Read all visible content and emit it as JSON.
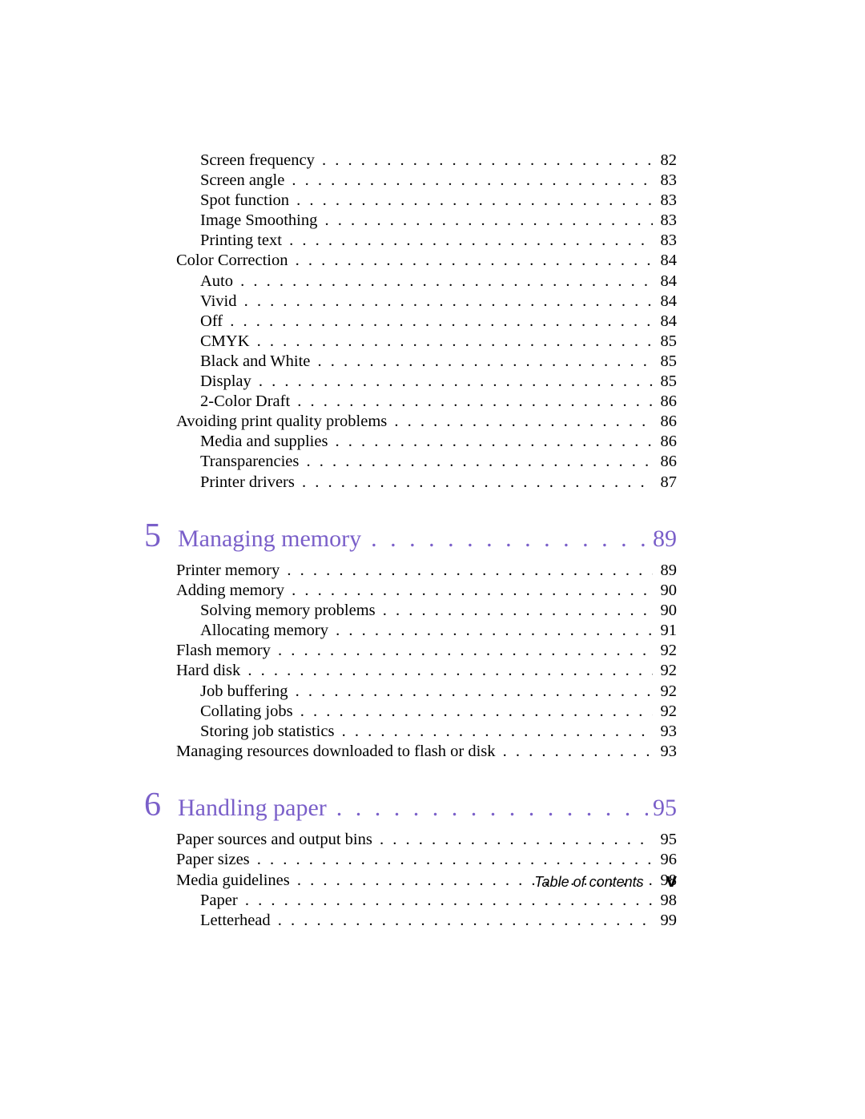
{
  "colors": {
    "heading": "#7a5fc9",
    "text": "#000000",
    "background": "#ffffff"
  },
  "typography": {
    "body_family": "Palatino Linotype, Book Antiqua, Palatino, Georgia, serif",
    "body_size_pt": 15,
    "heading_num_size_pt": 32,
    "heading_title_size_pt": 22,
    "footer_label_family": "Arial, Helvetica, sans-serif",
    "footer_label_size_pt": 13,
    "footer_page_size_pt": 18,
    "footer_page_weight": "700"
  },
  "top_entries": [
    {
      "level": 2,
      "title": "Screen frequency",
      "page": "82"
    },
    {
      "level": 2,
      "title": "Screen angle",
      "page": "83"
    },
    {
      "level": 2,
      "title": "Spot function",
      "page": "83"
    },
    {
      "level": 2,
      "title": "Image Smoothing",
      "page": "83"
    },
    {
      "level": 2,
      "title": "Printing text",
      "page": "83"
    },
    {
      "level": 1,
      "title": "Color Correction",
      "page": "84"
    },
    {
      "level": 2,
      "title": "Auto",
      "page": "84"
    },
    {
      "level": 2,
      "title": "Vivid",
      "page": "84"
    },
    {
      "level": 2,
      "title": "Off",
      "page": "84"
    },
    {
      "level": 2,
      "title": "CMYK",
      "page": "85"
    },
    {
      "level": 2,
      "title": "Black and White",
      "page": "85"
    },
    {
      "level": 2,
      "title": "Display",
      "page": "85"
    },
    {
      "level": 2,
      "title": "2-Color Draft",
      "page": "86"
    },
    {
      "level": 1,
      "title": "Avoiding print quality problems",
      "page": "86"
    },
    {
      "level": 2,
      "title": "Media and supplies",
      "page": "86"
    },
    {
      "level": 2,
      "title": "Transparencies",
      "page": "86"
    },
    {
      "level": 2,
      "title": "Printer drivers",
      "page": "87"
    }
  ],
  "chapters": [
    {
      "number": "5",
      "title": "Managing memory",
      "page": "89",
      "entries": [
        {
          "level": 1,
          "title": "Printer memory",
          "page": "89"
        },
        {
          "level": 1,
          "title": "Adding memory",
          "page": "90"
        },
        {
          "level": 2,
          "title": "Solving memory problems",
          "page": "90"
        },
        {
          "level": 2,
          "title": "Allocating memory",
          "page": "91"
        },
        {
          "level": 1,
          "title": "Flash memory",
          "page": "92"
        },
        {
          "level": 1,
          "title": "Hard disk",
          "page": "92"
        },
        {
          "level": 2,
          "title": "Job buffering",
          "page": "92"
        },
        {
          "level": 2,
          "title": "Collating jobs",
          "page": "92"
        },
        {
          "level": 2,
          "title": "Storing job statistics",
          "page": "93"
        },
        {
          "level": 1,
          "title": "Managing resources downloaded to flash or disk",
          "page": "93"
        }
      ]
    },
    {
      "number": "6",
      "title": "Handling paper",
      "page": "95",
      "entries": [
        {
          "level": 1,
          "title": "Paper sources and output bins",
          "page": "95"
        },
        {
          "level": 1,
          "title": "Paper sizes",
          "page": "96"
        },
        {
          "level": 1,
          "title": "Media guidelines",
          "page": "98"
        },
        {
          "level": 2,
          "title": "Paper",
          "page": "98"
        },
        {
          "level": 2,
          "title": "Letterhead",
          "page": "99"
        }
      ]
    }
  ],
  "footer": {
    "label": "Table of contents",
    "page": "v"
  }
}
